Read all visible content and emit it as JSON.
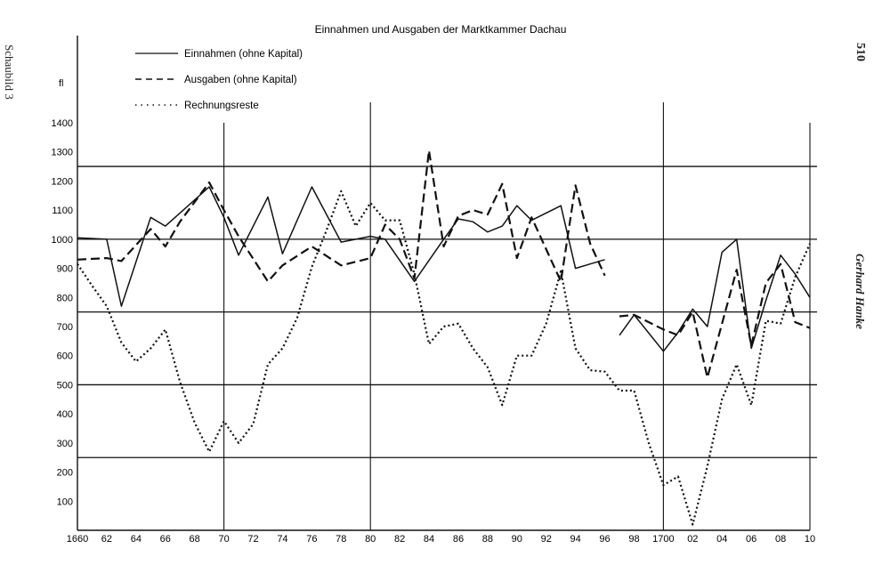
{
  "side_label_left": "Schaubild 3",
  "side_label_right": "Gerhard Hanke",
  "page_number": "510",
  "chart_data": {
    "type": "line",
    "title": "Einnahmen und Ausgaben der Marktkammer Dachau",
    "ylabel": "fl",
    "xlabel": "",
    "ylim": [
      0,
      1400
    ],
    "xlim": [
      1660,
      1710
    ],
    "y_ticks": [
      100,
      200,
      300,
      400,
      500,
      600,
      700,
      800,
      900,
      1000,
      1100,
      1200,
      1300,
      1400
    ],
    "x_tick_values": [
      1660,
      1662,
      1664,
      1666,
      1668,
      1670,
      1672,
      1674,
      1676,
      1678,
      1680,
      1682,
      1684,
      1686,
      1688,
      1690,
      1692,
      1694,
      1696,
      1698,
      1700,
      1702,
      1704,
      1706,
      1708,
      1710
    ],
    "x_tick_labels": [
      "1660",
      "62",
      "64",
      "66",
      "68",
      "70",
      "72",
      "74",
      "76",
      "78",
      "80",
      "82",
      "84",
      "86",
      "88",
      "90",
      "92",
      "94",
      "96",
      "98",
      "1700",
      "02",
      "04",
      "06",
      "08",
      "10"
    ],
    "grid_y": [
      250,
      500,
      750,
      1000,
      1250
    ],
    "grid_x": [
      1670,
      1680,
      1700,
      1710
    ],
    "legend_position": "top-left",
    "series": [
      {
        "name": "Einnahmen (ohne Kapital)",
        "style": "solid",
        "segments": [
          [
            [
              1660,
              1005
            ],
            [
              1662,
              1000
            ],
            [
              1663,
              770
            ],
            [
              1665,
              1075
            ],
            [
              1666,
              1045
            ],
            [
              1667,
              1090
            ],
            [
              1669,
              1180
            ],
            [
              1670,
              1075
            ],
            [
              1671,
              945
            ],
            [
              1673,
              1145
            ],
            [
              1674,
              950
            ],
            [
              1676,
              1180
            ],
            [
              1678,
              990
            ],
            [
              1680,
              1010
            ],
            [
              1681,
              1000
            ],
            [
              1683,
              855
            ],
            [
              1685,
              1000
            ],
            [
              1686,
              1070
            ],
            [
              1687,
              1060
            ],
            [
              1688,
              1025
            ],
            [
              1689,
              1045
            ],
            [
              1690,
              1115
            ],
            [
              1691,
              1065
            ],
            [
              1693,
              1115
            ],
            [
              1694,
              900
            ],
            [
              1695,
              915
            ],
            [
              1696,
              930
            ]
          ],
          [
            [
              1697,
              670
            ],
            [
              1698,
              740
            ],
            [
              1700,
              615
            ],
            [
              1701,
              680
            ],
            [
              1702,
              760
            ],
            [
              1703,
              700
            ],
            [
              1704,
              955
            ],
            [
              1705,
              1000
            ],
            [
              1706,
              625
            ],
            [
              1707,
              790
            ],
            [
              1708,
              945
            ],
            [
              1709,
              880
            ],
            [
              1710,
              800
            ]
          ]
        ]
      },
      {
        "name": "Ausgaben (ohne Kapital)",
        "style": "dashed",
        "segments": [
          [
            [
              1660,
              930
            ],
            [
              1662,
              935
            ],
            [
              1663,
              925
            ],
            [
              1665,
              1035
            ],
            [
              1666,
              975
            ],
            [
              1667,
              1060
            ],
            [
              1669,
              1195
            ],
            [
              1670,
              1100
            ],
            [
              1671,
              1010
            ],
            [
              1673,
              855
            ],
            [
              1674,
              910
            ],
            [
              1676,
              975
            ],
            [
              1678,
              910
            ],
            [
              1680,
              935
            ],
            [
              1681,
              1050
            ],
            [
              1682,
              1000
            ],
            [
              1683,
              865
            ],
            [
              1684,
              1305
            ],
            [
              1685,
              975
            ],
            [
              1686,
              1080
            ],
            [
              1687,
              1100
            ],
            [
              1688,
              1085
            ],
            [
              1689,
              1190
            ],
            [
              1690,
              935
            ],
            [
              1691,
              1075
            ],
            [
              1693,
              855
            ],
            [
              1694,
              1185
            ],
            [
              1695,
              985
            ],
            [
              1696,
              875
            ]
          ],
          [
            [
              1697,
              735
            ],
            [
              1698,
              740
            ],
            [
              1700,
              690
            ],
            [
              1701,
              670
            ],
            [
              1702,
              750
            ],
            [
              1703,
              525
            ],
            [
              1705,
              895
            ],
            [
              1706,
              635
            ],
            [
              1707,
              850
            ],
            [
              1708,
              915
            ],
            [
              1709,
              715
            ],
            [
              1710,
              695
            ]
          ]
        ]
      },
      {
        "name": "Rechnungsreste",
        "style": "dotted",
        "segments": [
          [
            [
              1660,
              915
            ],
            [
              1661,
              840
            ],
            [
              1662,
              770
            ],
            [
              1663,
              645
            ],
            [
              1664,
              580
            ],
            [
              1665,
              625
            ],
            [
              1666,
              690
            ],
            [
              1667,
              510
            ],
            [
              1668,
              370
            ],
            [
              1669,
              270
            ],
            [
              1670,
              375
            ],
            [
              1671,
              300
            ],
            [
              1672,
              365
            ],
            [
              1673,
              570
            ],
            [
              1674,
              625
            ],
            [
              1675,
              730
            ],
            [
              1676,
              905
            ],
            [
              1677,
              1030
            ],
            [
              1678,
              1165
            ],
            [
              1679,
              1045
            ],
            [
              1680,
              1125
            ],
            [
              1681,
              1065
            ],
            [
              1682,
              1065
            ],
            [
              1683,
              880
            ],
            [
              1684,
              640
            ],
            [
              1685,
              700
            ],
            [
              1686,
              710
            ],
            [
              1687,
              625
            ],
            [
              1688,
              560
            ],
            [
              1689,
              430
            ],
            [
              1690,
              600
            ],
            [
              1691,
              600
            ],
            [
              1692,
              710
            ],
            [
              1693,
              890
            ],
            [
              1694,
              625
            ],
            [
              1695,
              550
            ],
            [
              1696,
              545
            ],
            [
              1697,
              480
            ],
            [
              1698,
              480
            ],
            [
              1699,
              300
            ],
            [
              1700,
              155
            ],
            [
              1701,
              185
            ],
            [
              1702,
              20
            ],
            [
              1703,
              220
            ],
            [
              1704,
              450
            ],
            [
              1705,
              570
            ],
            [
              1706,
              430
            ],
            [
              1707,
              720
            ],
            [
              1708,
              710
            ],
            [
              1709,
              870
            ],
            [
              1710,
              985
            ]
          ]
        ]
      }
    ]
  }
}
